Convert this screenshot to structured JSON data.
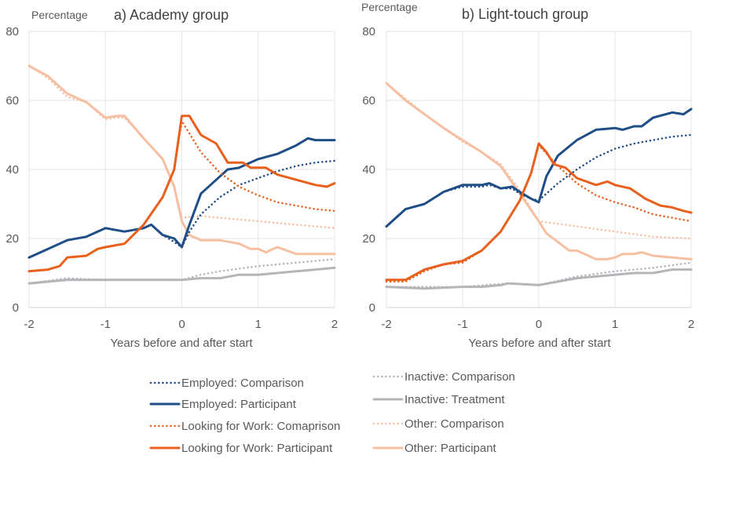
{
  "chart_data": [
    {
      "type": "line",
      "title": "a) Academy group",
      "ylabel": "Percentage",
      "xlabel": "Years before and after start",
      "xlim": [
        -2,
        2
      ],
      "ylim": [
        0,
        80
      ],
      "xticks": [
        "-2",
        "-1",
        "0",
        "1",
        "2"
      ],
      "yticks": [
        "0",
        "20",
        "40",
        "60",
        "80"
      ],
      "grid": true,
      "series": [
        {
          "name": "Inactive: Comparison",
          "x": [
            -2,
            -1.5,
            -1,
            -0.5,
            0,
            0.25,
            0.5,
            1,
            1.5,
            2
          ],
          "y": [
            7,
            8.5,
            8,
            8,
            8,
            9.5,
            10.5,
            12,
            13,
            14
          ]
        },
        {
          "name": "Inactive: Treatment",
          "x": [
            -2,
            -1.5,
            -1,
            -0.5,
            0,
            0.25,
            0.5,
            0.75,
            1,
            1.25,
            1.5,
            1.75,
            2
          ],
          "y": [
            7,
            8,
            8,
            8,
            8,
            8.5,
            8.5,
            9.5,
            9.5,
            10,
            10.5,
            11,
            11.5
          ]
        },
        {
          "name": "Other: Comparison",
          "x": [
            -2,
            -1.75,
            -1.5,
            -1.25,
            -1,
            -0.85,
            -0.75,
            -0.5,
            -0.25,
            -0.1,
            0,
            0.25,
            0.5,
            1,
            1.5,
            2
          ],
          "y": [
            70,
            66.5,
            61,
            59.5,
            54.5,
            55,
            55,
            49,
            43,
            35,
            26,
            26.5,
            26,
            25,
            24,
            23
          ]
        },
        {
          "name": "Other: Participant",
          "x": [
            -2,
            -1.75,
            -1.5,
            -1.25,
            -1,
            -0.85,
            -0.75,
            -0.5,
            -0.25,
            -0.1,
            0,
            0.1,
            0.25,
            0.5,
            0.75,
            0.9,
            1,
            1.1,
            1.25,
            1.5,
            1.75,
            2
          ],
          "y": [
            70,
            67,
            62,
            59.5,
            55,
            55.5,
            55.5,
            49,
            43,
            35,
            25,
            21,
            19.5,
            19.5,
            18.5,
            17,
            17,
            16,
            17.5,
            15.5,
            15.5,
            15.5
          ]
        },
        {
          "name": "Employed: Comparison",
          "x": [
            -2,
            -1.75,
            -1.5,
            -1.25,
            -1,
            -0.75,
            -0.5,
            -0.4,
            -0.25,
            -0.1,
            0,
            0.1,
            0.25,
            0.5,
            0.75,
            1,
            1.25,
            1.5,
            1.75,
            2
          ],
          "y": [
            14.5,
            17,
            19.5,
            20.5,
            23,
            22,
            23,
            24,
            21,
            19,
            17.5,
            22,
            27,
            32,
            35.5,
            37.5,
            39.5,
            41,
            42,
            42.5
          ]
        },
        {
          "name": "Employed: Participant",
          "x": [
            -2,
            -1.75,
            -1.5,
            -1.25,
            -1,
            -0.75,
            -0.5,
            -0.4,
            -0.25,
            -0.1,
            0,
            0.1,
            0.25,
            0.5,
            0.6,
            0.75,
            1,
            1.25,
            1.5,
            1.65,
            1.75,
            2
          ],
          "y": [
            14.5,
            17,
            19.5,
            20.5,
            23,
            22,
            23,
            24,
            21,
            20,
            17.5,
            24,
            33,
            38,
            40,
            40.5,
            43,
            44.5,
            47,
            49,
            48.5,
            48.5
          ]
        },
        {
          "name": "Looking for Work: Comaprison",
          "x": [
            -2,
            -1.75,
            -1.6,
            -1.5,
            -1.25,
            -1.1,
            -1,
            -0.75,
            -0.5,
            -0.25,
            -0.1,
            0,
            0.25,
            0.5,
            0.75,
            1,
            1.25,
            1.5,
            1.75,
            2
          ],
          "y": [
            10.5,
            11,
            12,
            14.5,
            15,
            17,
            17.5,
            18.5,
            24,
            32,
            40,
            54,
            45,
            39,
            35,
            32.5,
            30.5,
            29.5,
            28.5,
            28
          ]
        },
        {
          "name": "Looking for Work: Participant",
          "x": [
            -2,
            -1.75,
            -1.6,
            -1.5,
            -1.25,
            -1.1,
            -1,
            -0.75,
            -0.5,
            -0.25,
            -0.1,
            0,
            0.1,
            0.25,
            0.45,
            0.6,
            0.8,
            0.9,
            1.1,
            1.25,
            1.5,
            1.75,
            1.9,
            2
          ],
          "y": [
            10.5,
            11,
            12,
            14.5,
            15,
            17,
            17.5,
            18.5,
            24,
            32,
            40,
            55.5,
            55.5,
            50,
            47.5,
            42,
            42,
            40.5,
            40.5,
            38.5,
            37,
            35.5,
            35,
            36
          ]
        }
      ]
    },
    {
      "type": "line",
      "title": "b) Light-touch group",
      "ylabel": "Percentage",
      "xlabel": "Years before and after start",
      "xlim": [
        -2,
        2
      ],
      "ylim": [
        0,
        80
      ],
      "xticks": [
        "-2",
        "-1",
        "0",
        "1",
        "2"
      ],
      "yticks": [
        "0",
        "20",
        "40",
        "60",
        "80"
      ],
      "grid": true,
      "series": [
        {
          "name": "Inactive: Comparison",
          "x": [
            -2,
            -1,
            -0.4,
            0,
            0.5,
            1,
            1.5,
            2
          ],
          "y": [
            6,
            6,
            7,
            6.5,
            9,
            10.5,
            11.5,
            13
          ]
        },
        {
          "name": "Inactive: Treatment",
          "x": [
            -2,
            -1.5,
            -1,
            -0.75,
            -0.5,
            -0.4,
            0,
            0.25,
            0.5,
            0.75,
            1,
            1.25,
            1.5,
            1.75,
            2
          ],
          "y": [
            6,
            5.5,
            6,
            6,
            6.5,
            7,
            6.5,
            7.5,
            8.5,
            9,
            9.5,
            10,
            10,
            11,
            11
          ]
        },
        {
          "name": "Other: Comparison",
          "x": [
            -2,
            -1.75,
            -1.5,
            -1.25,
            -1,
            -0.75,
            -0.5,
            -0.25,
            0,
            0.5,
            1,
            1.5,
            2
          ],
          "y": [
            65,
            60.5,
            56,
            52,
            48,
            45,
            41.5,
            34,
            25,
            23.5,
            22,
            20.5,
            20
          ]
        },
        {
          "name": "Other: Participant",
          "x": [
            -2,
            -1.75,
            -1.5,
            -1.25,
            -1,
            -0.75,
            -0.5,
            -0.25,
            0,
            0.1,
            0.25,
            0.4,
            0.5,
            0.75,
            0.9,
            1,
            1.1,
            1.25,
            1.35,
            1.5,
            1.75,
            2
          ],
          "y": [
            65,
            60,
            56,
            52,
            48.5,
            45,
            41,
            33,
            25,
            21.5,
            19,
            16.5,
            16.5,
            14,
            14,
            14.5,
            15.5,
            15.5,
            16,
            15,
            14.5,
            14
          ]
        },
        {
          "name": "Employed: Comparison",
          "x": [
            -2,
            -1.75,
            -1.5,
            -1.25,
            -1,
            -0.75,
            -0.65,
            -0.5,
            -0.35,
            -0.25,
            -0.1,
            0,
            0.25,
            0.5,
            0.75,
            1,
            1.25,
            1.5,
            1.75,
            2
          ],
          "y": [
            23.5,
            28.5,
            30,
            33.5,
            35,
            35,
            35.5,
            34.5,
            34.5,
            33,
            31.5,
            31,
            36,
            40,
            43.5,
            46,
            47.5,
            48.5,
            49.5,
            50
          ]
        },
        {
          "name": "Employed: Participant",
          "x": [
            -2,
            -1.75,
            -1.5,
            -1.25,
            -1,
            -0.75,
            -0.65,
            -0.5,
            -0.35,
            -0.25,
            -0.1,
            0,
            0.1,
            0.25,
            0.5,
            0.75,
            1,
            1.1,
            1.25,
            1.35,
            1.5,
            1.75,
            1.9,
            2
          ],
          "y": [
            23.5,
            28.5,
            30,
            33.5,
            35.5,
            35.5,
            36,
            34.5,
            35,
            33.5,
            31.5,
            30.5,
            38,
            44,
            48.5,
            51.5,
            52,
            51.5,
            52.5,
            52.5,
            55,
            56.5,
            56,
            57.5
          ]
        },
        {
          "name": "Looking for Work: Comaprison",
          "x": [
            -2,
            -1.75,
            -1.5,
            -1.25,
            -1,
            -0.75,
            -0.5,
            -0.25,
            -0.1,
            0,
            0.25,
            0.5,
            0.75,
            1,
            1.25,
            1.5,
            1.75,
            2
          ],
          "y": [
            7.5,
            7.5,
            10.5,
            12.5,
            13,
            16.5,
            22,
            31,
            39,
            47,
            41,
            36,
            32.5,
            30.5,
            29,
            27,
            26,
            25
          ]
        },
        {
          "name": "Looking for Work: Participant",
          "x": [
            -2,
            -1.75,
            -1.5,
            -1.25,
            -1,
            -0.75,
            -0.5,
            -0.25,
            -0.1,
            0,
            0.1,
            0.2,
            0.35,
            0.5,
            0.75,
            0.9,
            1,
            1.2,
            1.4,
            1.6,
            1.75,
            1.9,
            2
          ],
          "y": [
            8,
            8,
            11,
            12.5,
            13.5,
            16.5,
            22,
            31,
            39,
            47.5,
            45,
            41.5,
            40.5,
            37.5,
            35.5,
            36.5,
            35.5,
            34.5,
            31.5,
            29.5,
            29,
            28,
            27.5
          ]
        }
      ]
    }
  ],
  "legend": [
    {
      "label": "Employed: Comparison",
      "color": "#1f4e87",
      "style": "dotted"
    },
    {
      "label": "Employed: Participant",
      "color": "#1f4e87",
      "style": "solid"
    },
    {
      "label": "Looking for Work: Comaprison",
      "color": "#e8601c",
      "style": "dotted"
    },
    {
      "label": "Looking for Work: Participant",
      "color": "#e8601c",
      "style": "solid"
    },
    {
      "label": "Inactive: Comparison",
      "color": "#b4b4b9",
      "style": "dotted"
    },
    {
      "label": "Inactive: Treatment",
      "color": "#b4b4b9",
      "style": "solid"
    },
    {
      "label": "Other: Comparison",
      "color": "#f6bfa2",
      "style": "dotted"
    },
    {
      "label": "Other: Participant",
      "color": "#f6bfa2",
      "style": "solid"
    }
  ]
}
